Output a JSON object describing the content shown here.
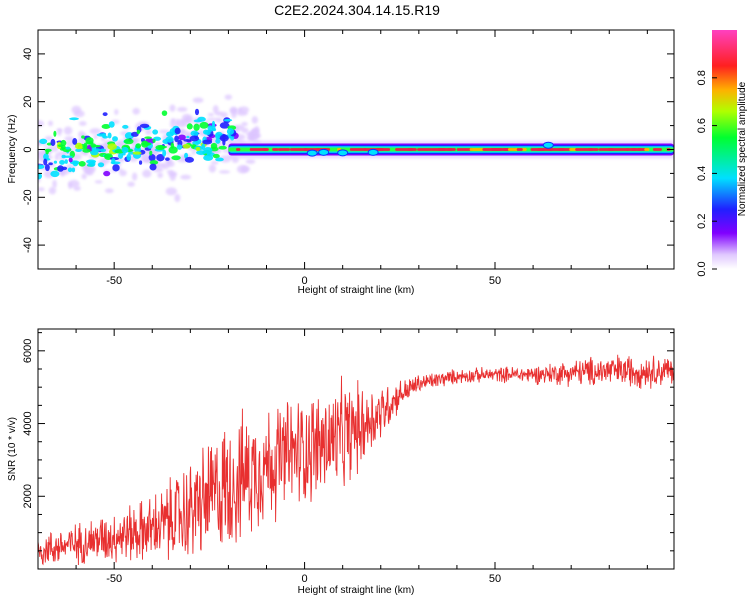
{
  "title": "C2E2.2024.304.14.15.R19",
  "colors": {
    "snr_line": "#e83030",
    "spectral_peak": "#e8204a",
    "axis": "#000000"
  },
  "chart_data": [
    {
      "type": "heatmap",
      "xlabel": "Height of straight line (km)",
      "ylabel": "Frequency (Hz)",
      "xlim": [
        -70,
        97
      ],
      "ylim": [
        -50,
        50
      ],
      "xticks": [
        -50,
        0,
        50
      ],
      "yticks": [
        -40,
        -20,
        0,
        20,
        40
      ],
      "colorbar": {
        "label": "Normalized spectral amplitude",
        "range": [
          0,
          1
        ],
        "ticks": [
          "0.0",
          "0.2",
          "0.4",
          "0.6",
          "0.8"
        ],
        "colormap": [
          "#ffffff",
          "#d8b8ff",
          "#8000ff",
          "#0040ff",
          "#00e0ff",
          "#00ff40",
          "#c0ff00",
          "#ffc000",
          "#ff2020",
          "#ff40c0"
        ]
      },
      "description_of_content": {
        "noisy_region_x": [
          -70,
          -18
        ],
        "noisy_region_freq_spread_hz": [
          -12,
          15
        ],
        "carrier_region_x": [
          -20,
          97
        ],
        "carrier_frequency_hz": 0
      }
    },
    {
      "type": "line",
      "xlabel": "Height of straight line (km)",
      "ylabel": "SNR (10 * v/v)",
      "xlim": [
        -70,
        97
      ],
      "ylim": [
        0,
        6600
      ],
      "xticks": [
        -50,
        0,
        50
      ],
      "yticks": [
        2000,
        4000,
        6000
      ],
      "series": [
        {
          "trend_x": [
            -70,
            -60,
            -50,
            -40,
            -30,
            -20,
            -10,
            0,
            10,
            20,
            25,
            30,
            40,
            50,
            60,
            70,
            80,
            90,
            97
          ],
          "trend_y": [
            500,
            700,
            900,
            1100,
            1600,
            2300,
            2900,
            3300,
            3600,
            4300,
            4800,
            5100,
            5300,
            5350,
            5350,
            5400,
            5450,
            5450,
            5450
          ],
          "noise_amplitude": [
            450,
            550,
            700,
            900,
            1400,
            1800,
            1600,
            1500,
            1500,
            800,
            400,
            250,
            200,
            200,
            250,
            350,
            450,
            450,
            400
          ]
        }
      ]
    }
  ]
}
